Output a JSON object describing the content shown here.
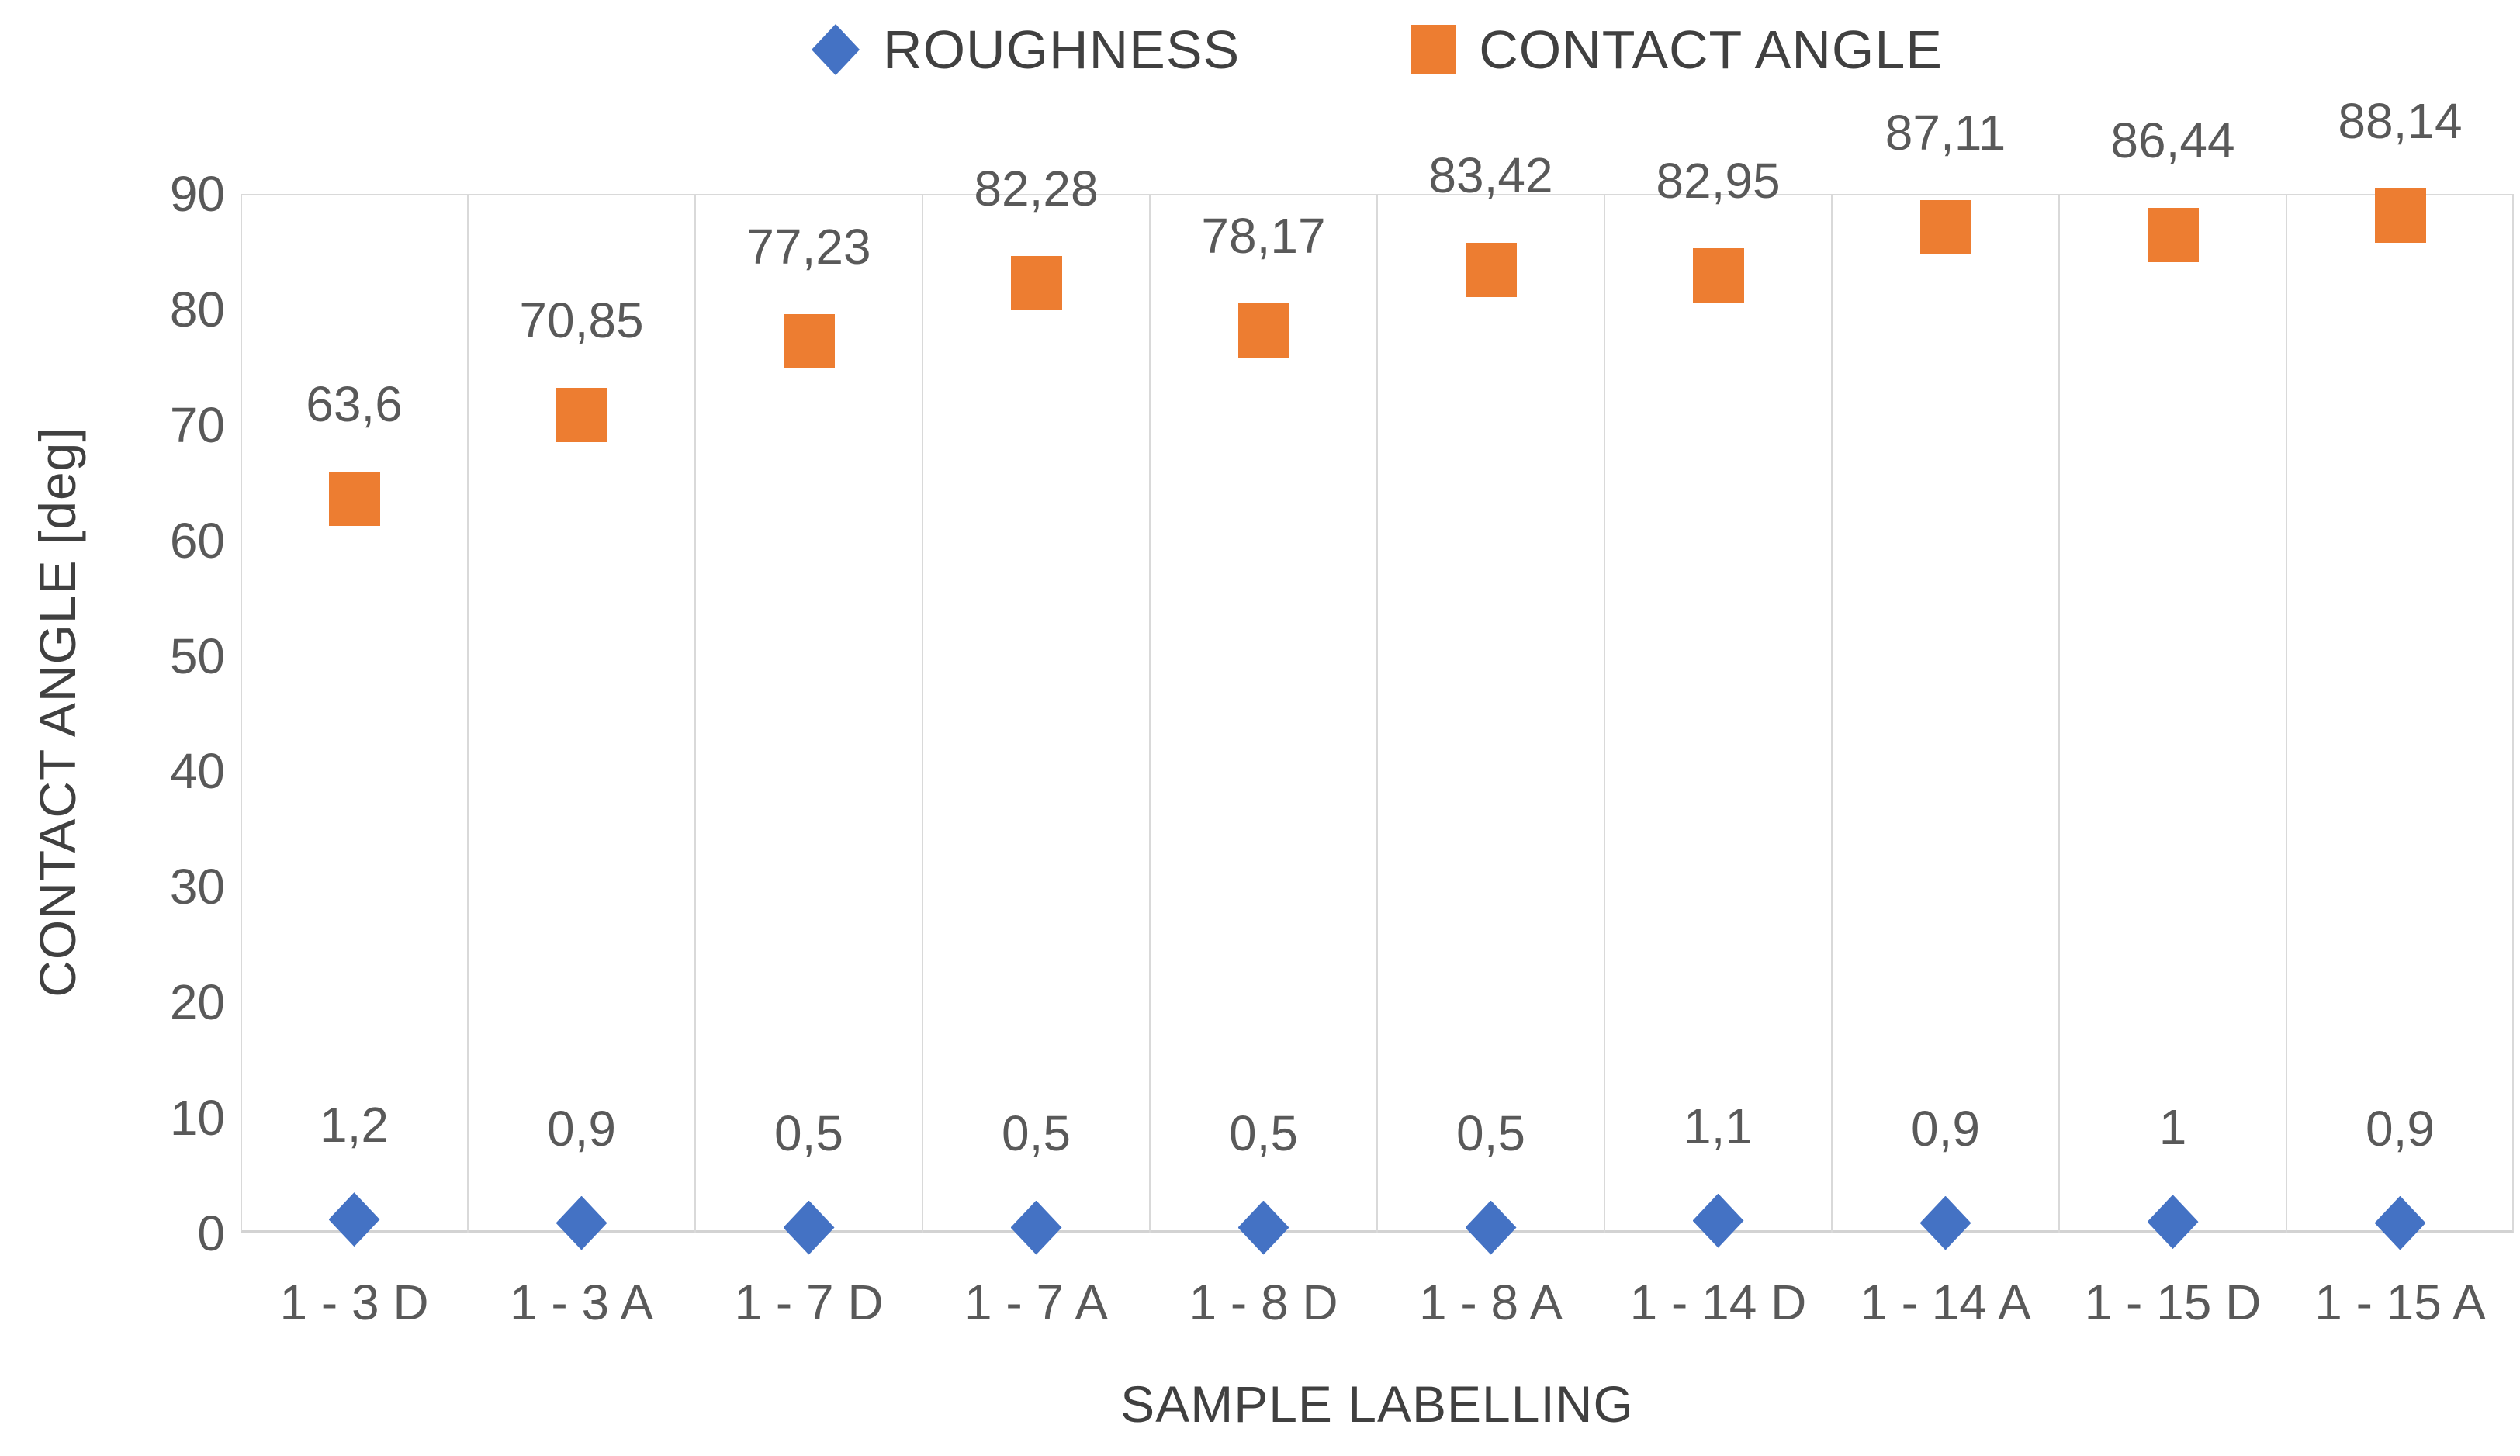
{
  "chart_data": {
    "type": "scatter",
    "title": "",
    "xlabel": "SAMPLE LABELLING",
    "ylabel": "CONTACT ANGLE [deg]",
    "ylim": [
      0,
      90
    ],
    "yticks": [
      0,
      10,
      20,
      30,
      40,
      50,
      60,
      70,
      80,
      90
    ],
    "grid": "vertical-category-separators-only",
    "legend_position": "top-center",
    "categories": [
      "1 - 3 D",
      "1 - 3 A",
      "1 - 7 D",
      "1 - 7 A",
      "1 - 8 D",
      "1 - 8 A",
      "1 - 14 D",
      "1 - 14 A",
      "1 - 15 D",
      "1 - 15 A"
    ],
    "series": [
      {
        "name": "ROUGHNESS",
        "marker": "diamond",
        "color": "#4472C4",
        "values": [
          1.2,
          0.9,
          0.5,
          0.5,
          0.5,
          0.5,
          1.1,
          0.9,
          1,
          0.9
        ],
        "labels": [
          "1,2",
          "0,9",
          "0,5",
          "0,5",
          "0,5",
          "0,5",
          "1,1",
          "0,9",
          "1",
          "0,9"
        ]
      },
      {
        "name": "CONTACT ANGLE",
        "marker": "square",
        "color": "#ED7D31",
        "values": [
          63.6,
          70.85,
          77.23,
          82.28,
          78.17,
          83.42,
          82.95,
          87.11,
          86.44,
          88.14
        ],
        "labels": [
          "63,6",
          "70,85",
          "77,23",
          "82,28",
          "78,17",
          "83,42",
          "82,95",
          "87,11",
          "86,44",
          "88,14"
        ]
      }
    ]
  },
  "colors": {
    "gridline": "#d9d9d9",
    "tick_text": "#595959",
    "title_text": "#404040",
    "background": "#ffffff"
  }
}
